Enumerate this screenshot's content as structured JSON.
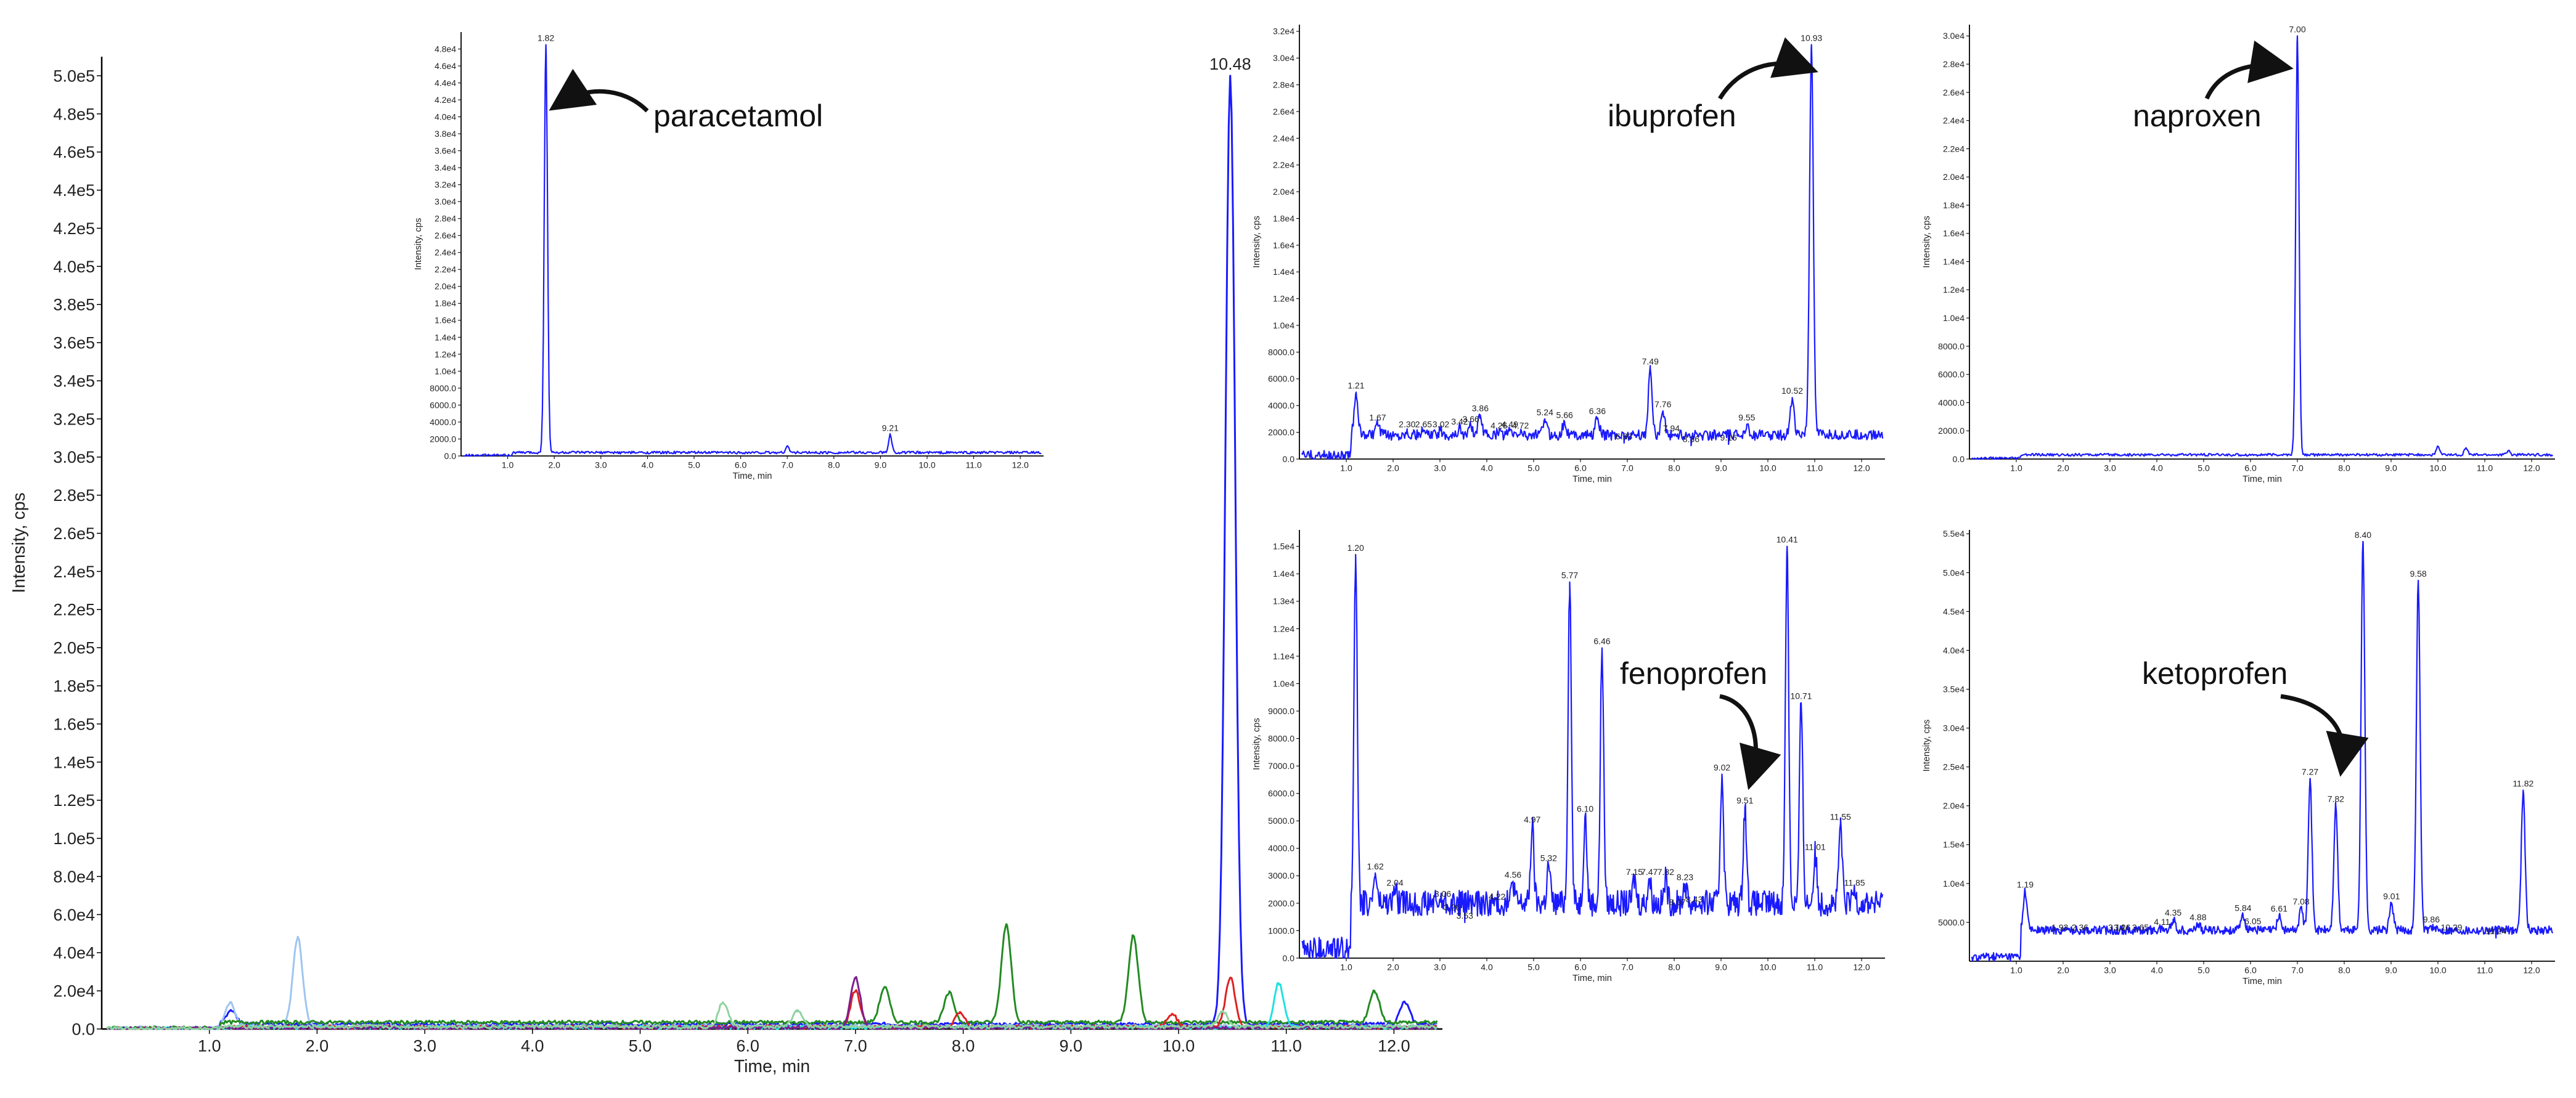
{
  "chart_data": [
    {
      "id": "main",
      "type": "line",
      "xlabel": "Time, min",
      "ylabel": "Intensity, cps",
      "xlim": [
        0,
        12.45
      ],
      "ylim": [
        0,
        510000
      ],
      "x_ticks": [
        "1.0",
        "2.0",
        "3.0",
        "4.0",
        "5.0",
        "6.0",
        "7.0",
        "8.0",
        "9.0",
        "10.0",
        "11.0",
        "12.0"
      ],
      "y_ticks": [
        "0.0",
        "2.0e4",
        "4.0e4",
        "6.0e4",
        "8.0e4",
        "1.0e5",
        "1.2e5",
        "1.4e5",
        "1.6e5",
        "1.8e5",
        "2.0e5",
        "2.2e5",
        "2.4e5",
        "2.6e5",
        "2.8e5",
        "3.0e5",
        "3.2e5",
        "3.4e5",
        "3.6e5",
        "3.8e5",
        "4.0e5",
        "4.2e5",
        "4.4e5",
        "4.6e5",
        "4.8e5",
        "5.0e5"
      ],
      "peak_labels": [
        {
          "x": 10.48,
          "y": 500000,
          "text": "10.48"
        }
      ],
      "series": [
        {
          "color": "#1a1aff",
          "peaks": [
            [
              1.2,
              10000
            ],
            [
              10.48,
              500000
            ],
            [
              12.1,
              14000
            ]
          ],
          "baseline": 2500
        },
        {
          "color": "#9ec5f0",
          "peaks": [
            [
              1.19,
              14000
            ],
            [
              1.82,
              48000
            ]
          ],
          "baseline": 1500
        },
        {
          "color": "#228b22",
          "peaks": [
            [
              7.27,
              22000
            ],
            [
              7.87,
              19000
            ],
            [
              8.4,
              55000
            ],
            [
              9.58,
              49000
            ],
            [
              11.82,
              20000
            ]
          ],
          "baseline": 3500
        },
        {
          "color": "#e02020",
          "peaks": [
            [
              7.0,
              20000
            ],
            [
              7.97,
              9000
            ],
            [
              9.94,
              8000
            ],
            [
              10.48,
              27000
            ]
          ],
          "baseline": 1000
        },
        {
          "color": "#20e0e0",
          "peaks": [
            [
              10.93,
              24000
            ]
          ],
          "baseline": 800
        },
        {
          "color": "#7b1f8f",
          "peaks": [
            [
              7.0,
              27000
            ]
          ],
          "baseline": 600
        },
        {
          "color": "#8fd39f",
          "peaks": [
            [
              5.77,
              14000
            ],
            [
              6.46,
              10000
            ],
            [
              10.41,
              9000
            ]
          ],
          "baseline": 1200
        }
      ]
    },
    {
      "id": "paracetamol",
      "type": "line",
      "annotation": "paracetamol",
      "xlabel": "Time, min",
      "ylabel": "Intensity, cps",
      "xlim": [
        0,
        12.5
      ],
      "ylim": [
        0,
        50000
      ],
      "x_ticks": [
        "1.0",
        "2.0",
        "3.0",
        "4.0",
        "5.0",
        "6.0",
        "7.0",
        "8.0",
        "9.0",
        "10.0",
        "11.0",
        "12.0"
      ],
      "y_ticks": [
        "0.0",
        "2000.0",
        "4000.0",
        "6000.0",
        "8000.0",
        "1.0e4",
        "1.2e4",
        "1.4e4",
        "1.6e4",
        "1.8e4",
        "2.0e4",
        "2.2e4",
        "2.4e4",
        "2.6e4",
        "2.8e4",
        "3.0e4",
        "3.2e4",
        "3.4e4",
        "3.6e4",
        "3.8e4",
        "4.0e4",
        "4.2e4",
        "4.4e4",
        "4.6e4",
        "4.8e4"
      ],
      "color": "#1a1aff",
      "baseline": 400,
      "peaks": [
        [
          1.82,
          48500
        ],
        [
          7.0,
          1200
        ],
        [
          9.21,
          2500
        ]
      ],
      "peak_labels": [
        {
          "x": 1.82,
          "y": 48500,
          "text": "1.82"
        },
        {
          "x": 9.21,
          "y": 2500,
          "text": "9.21"
        }
      ]
    },
    {
      "id": "ibuprofen",
      "type": "line",
      "annotation": "ibuprofen",
      "xlabel": "Time, min",
      "ylabel": "Intensity, cps",
      "xlim": [
        0,
        12.5
      ],
      "ylim": [
        0,
        32500
      ],
      "x_ticks": [
        "1.0",
        "2.0",
        "3.0",
        "4.0",
        "5.0",
        "6.0",
        "7.0",
        "8.0",
        "9.0",
        "10.0",
        "11.0",
        "12.0"
      ],
      "y_ticks": [
        "0.0",
        "2000.0",
        "4000.0",
        "6000.0",
        "8000.0",
        "1.0e4",
        "1.2e4",
        "1.4e4",
        "1.6e4",
        "1.8e4",
        "2.0e4",
        "2.2e4",
        "2.4e4",
        "2.6e4",
        "2.8e4",
        "3.0e4",
        "3.2e4"
      ],
      "color": "#1a1aff",
      "baseline": 1800,
      "peaks": [
        [
          1.21,
          5000
        ],
        [
          1.67,
          2600
        ],
        [
          2.3,
          2100
        ],
        [
          2.65,
          2100
        ],
        [
          3.02,
          2100
        ],
        [
          3.42,
          2300
        ],
        [
          3.66,
          2500
        ],
        [
          3.86,
          3300
        ],
        [
          4.26,
          2000
        ],
        [
          4.49,
          2100
        ],
        [
          4.72,
          2000
        ],
        [
          5.24,
          3000
        ],
        [
          5.66,
          2800
        ],
        [
          6.36,
          3100
        ],
        [
          6.93,
          1200
        ],
        [
          7.49,
          6800
        ],
        [
          7.76,
          3600
        ],
        [
          7.94,
          1800
        ],
        [
          8.36,
          1000
        ],
        [
          9.16,
          1100
        ],
        [
          9.55,
          2600
        ],
        [
          10.52,
          4600
        ],
        [
          10.93,
          31000
        ]
      ],
      "peak_labels": [
        {
          "x": 1.21,
          "y": 5000,
          "text": "1.21"
        },
        {
          "x": 1.67,
          "y": 2600,
          "text": "1.67"
        },
        {
          "x": 2.3,
          "y": 2100,
          "text": "2.30"
        },
        {
          "x": 2.65,
          "y": 2100,
          "text": "2.65"
        },
        {
          "x": 3.02,
          "y": 2100,
          "text": "3.02"
        },
        {
          "x": 3.42,
          "y": 2300,
          "text": "3.42"
        },
        {
          "x": 3.66,
          "y": 2500,
          "text": "3.66"
        },
        {
          "x": 3.86,
          "y": 3300,
          "text": "3.86"
        },
        {
          "x": 4.26,
          "y": 2000,
          "text": "4.26"
        },
        {
          "x": 4.49,
          "y": 2100,
          "text": "4.49"
        },
        {
          "x": 4.72,
          "y": 2000,
          "text": "4.72"
        },
        {
          "x": 5.24,
          "y": 3000,
          "text": "5.24"
        },
        {
          "x": 5.66,
          "y": 2800,
          "text": "5.66"
        },
        {
          "x": 6.36,
          "y": 3100,
          "text": "6.36"
        },
        {
          "x": 6.93,
          "y": 1200,
          "text": "6.93"
        },
        {
          "x": 7.49,
          "y": 6800,
          "text": "7.49"
        },
        {
          "x": 7.76,
          "y": 3600,
          "text": "7.76"
        },
        {
          "x": 7.94,
          "y": 1800,
          "text": "7.94"
        },
        {
          "x": 8.36,
          "y": 1000,
          "text": "8.36"
        },
        {
          "x": 9.16,
          "y": 1100,
          "text": "9.16"
        },
        {
          "x": 9.55,
          "y": 2600,
          "text": "9.55"
        },
        {
          "x": 10.52,
          "y": 4600,
          "text": "10.52"
        },
        {
          "x": 10.93,
          "y": 31000,
          "text": "10.93"
        }
      ]
    },
    {
      "id": "naproxen",
      "type": "line",
      "annotation": "naproxen",
      "xlabel": "Time, min",
      "ylabel": "Intensity, cps",
      "xlim": [
        0,
        12.5
      ],
      "ylim": [
        0,
        30800
      ],
      "x_ticks": [
        "1.0",
        "2.0",
        "3.0",
        "4.0",
        "5.0",
        "6.0",
        "7.0",
        "8.0",
        "9.0",
        "10.0",
        "11.0",
        "12.0"
      ],
      "y_ticks": [
        "0.0",
        "2000.0",
        "4000.0",
        "6000.0",
        "8000.0",
        "1.0e4",
        "1.2e4",
        "1.4e4",
        "1.6e4",
        "1.8e4",
        "2.0e4",
        "2.2e4",
        "2.4e4",
        "2.6e4",
        "2.8e4",
        "3.0e4"
      ],
      "color": "#1a1aff",
      "baseline": 300,
      "peaks": [
        [
          7.0,
          30000
        ],
        [
          10.0,
          900
        ],
        [
          10.6,
          800
        ],
        [
          11.5,
          600
        ]
      ],
      "peak_labels": [
        {
          "x": 7.0,
          "y": 30000,
          "text": "7.00"
        }
      ]
    },
    {
      "id": "fenoprofen",
      "type": "line",
      "annotation": "fenoprofen",
      "xlabel": "Time, min",
      "ylabel": "Intensity, cps",
      "xlim": [
        0,
        12.5
      ],
      "ylim": [
        0,
        15600
      ],
      "x_ticks": [
        "1.0",
        "2.0",
        "3.0",
        "4.0",
        "5.0",
        "6.0",
        "7.0",
        "8.0",
        "9.0",
        "10.0",
        "11.0",
        "12.0"
      ],
      "y_ticks": [
        "0.0",
        "1000.0",
        "2000.0",
        "3000.0",
        "4000.0",
        "5000.0",
        "6000.0",
        "7000.0",
        "8000.0",
        "9000.0",
        "1.0e4",
        "1.1e4",
        "1.2e4",
        "1.3e4",
        "1.4e4",
        "1.5e4"
      ],
      "color": "#1a1aff",
      "baseline": 2000,
      "peaks": [
        [
          1.2,
          14700
        ],
        [
          1.62,
          3100
        ],
        [
          2.04,
          2500
        ],
        [
          3.06,
          2100
        ],
        [
          3.26,
          1600
        ],
        [
          3.53,
          1300
        ],
        [
          4.22,
          2000
        ],
        [
          4.56,
          2800
        ],
        [
          4.97,
          4800
        ],
        [
          5.32,
          3400
        ],
        [
          5.77,
          13700
        ],
        [
          6.1,
          5200
        ],
        [
          6.46,
          11300
        ],
        [
          7.15,
          2900
        ],
        [
          7.47,
          2900
        ],
        [
          7.82,
          2900
        ],
        [
          8.07,
          1800
        ],
        [
          8.23,
          2700
        ],
        [
          8.43,
          1900
        ],
        [
          9.02,
          6700
        ],
        [
          9.51,
          5500
        ],
        [
          10.41,
          15000
        ],
        [
          10.71,
          9300
        ],
        [
          11.01,
          3800
        ],
        [
          11.55,
          4900
        ],
        [
          11.85,
          2500
        ]
      ],
      "peak_labels": [
        {
          "x": 1.2,
          "y": 14700,
          "text": "1.20"
        },
        {
          "x": 1.62,
          "y": 3100,
          "text": "1.62"
        },
        {
          "x": 2.04,
          "y": 2500,
          "text": "2.04"
        },
        {
          "x": 3.06,
          "y": 2100,
          "text": "3.06"
        },
        {
          "x": 3.26,
          "y": 1600,
          "text": "3.26"
        },
        {
          "x": 3.53,
          "y": 1300,
          "text": "3.53"
        },
        {
          "x": 4.22,
          "y": 2000,
          "text": "4.22"
        },
        {
          "x": 4.56,
          "y": 2800,
          "text": "4.56"
        },
        {
          "x": 4.97,
          "y": 4800,
          "text": "4.97"
        },
        {
          "x": 5.32,
          "y": 3400,
          "text": "5.32"
        },
        {
          "x": 5.77,
          "y": 13700,
          "text": "5.77"
        },
        {
          "x": 6.1,
          "y": 5200,
          "text": "6.10"
        },
        {
          "x": 6.46,
          "y": 11300,
          "text": "6.46"
        },
        {
          "x": 7.15,
          "y": 2900,
          "text": "7.15"
        },
        {
          "x": 7.47,
          "y": 2900,
          "text": "7.47"
        },
        {
          "x": 7.82,
          "y": 2900,
          "text": "7.82"
        },
        {
          "x": 8.07,
          "y": 1800,
          "text": "8.07"
        },
        {
          "x": 8.23,
          "y": 2700,
          "text": "8.23"
        },
        {
          "x": 8.43,
          "y": 1900,
          "text": "8.43"
        },
        {
          "x": 9.02,
          "y": 6700,
          "text": "9.02"
        },
        {
          "x": 9.51,
          "y": 5500,
          "text": "9.51"
        },
        {
          "x": 10.41,
          "y": 15000,
          "text": "10.41"
        },
        {
          "x": 10.71,
          "y": 9300,
          "text": "10.71"
        },
        {
          "x": 11.01,
          "y": 3800,
          "text": "11.01"
        },
        {
          "x": 11.55,
          "y": 4900,
          "text": "11.55"
        },
        {
          "x": 11.85,
          "y": 2500,
          "text": "11.85"
        }
      ]
    },
    {
      "id": "ketoprofen",
      "type": "line",
      "annotation": "ketoprofen",
      "xlabel": "Time, min",
      "ylabel": "Intensity, cps",
      "xlim": [
        0,
        12.5
      ],
      "ylim": [
        0,
        55500
      ],
      "x_ticks": [
        "1.0",
        "2.0",
        "3.0",
        "4.0",
        "5.0",
        "6.0",
        "7.0",
        "8.0",
        "9.0",
        "10.0",
        "11.0",
        "12.0"
      ],
      "y_ticks": [
        "5000.0",
        "1.0e4",
        "1.5e4",
        "2.0e4",
        "2.5e4",
        "3.0e4",
        "3.5e4",
        "4.0e4",
        "4.5e4",
        "5.0e4",
        "5.5e4"
      ],
      "color": "#1a1aff",
      "baseline": 4000,
      "peaks": [
        [
          1.19,
          9000
        ],
        [
          1.93,
          3500
        ],
        [
          2.36,
          3500
        ],
        [
          3.14,
          3500
        ],
        [
          3.26,
          3500
        ],
        [
          3.65,
          3500
        ],
        [
          4.11,
          4200
        ],
        [
          4.35,
          5400
        ],
        [
          4.88,
          4800
        ],
        [
          5.84,
          6000
        ],
        [
          6.05,
          4300
        ],
        [
          6.61,
          5900
        ],
        [
          7.08,
          6800
        ],
        [
          7.27,
          23500
        ],
        [
          7.82,
          20000
        ],
        [
          8.4,
          54000
        ],
        [
          9.01,
          7500
        ],
        [
          9.58,
          49000
        ],
        [
          9.86,
          4500
        ],
        [
          10.29,
          3500
        ],
        [
          11.24,
          3000
        ],
        [
          11.82,
          22000
        ]
      ],
      "peak_labels": [
        {
          "x": 1.19,
          "y": 9000,
          "text": "1.19"
        },
        {
          "x": 1.93,
          "y": 3500,
          "text": "1.93"
        },
        {
          "x": 2.36,
          "y": 3500,
          "text": "2.36"
        },
        {
          "x": 3.14,
          "y": 3500,
          "text": "3.14"
        },
        {
          "x": 3.26,
          "y": 3500,
          "text": "3.26"
        },
        {
          "x": 3.65,
          "y": 3500,
          "text": "3.65"
        },
        {
          "x": 4.11,
          "y": 4200,
          "text": "4.11"
        },
        {
          "x": 4.35,
          "y": 5400,
          "text": "4.35"
        },
        {
          "x": 4.88,
          "y": 4800,
          "text": "4.88"
        },
        {
          "x": 5.84,
          "y": 6000,
          "text": "5.84"
        },
        {
          "x": 6.05,
          "y": 4300,
          "text": "6.05"
        },
        {
          "x": 6.61,
          "y": 5900,
          "text": "6.61"
        },
        {
          "x": 7.08,
          "y": 6800,
          "text": "7.08"
        },
        {
          "x": 7.27,
          "y": 23500,
          "text": "7.27"
        },
        {
          "x": 7.82,
          "y": 20000,
          "text": "7.82"
        },
        {
          "x": 8.4,
          "y": 54000,
          "text": "8.40"
        },
        {
          "x": 9.01,
          "y": 7500,
          "text": "9.01"
        },
        {
          "x": 9.58,
          "y": 49000,
          "text": "9.58"
        },
        {
          "x": 9.86,
          "y": 4500,
          "text": "9.86"
        },
        {
          "x": 10.29,
          "y": 3500,
          "text": "10.29"
        },
        {
          "x": 11.24,
          "y": 3000,
          "text": "11.24"
        },
        {
          "x": 11.82,
          "y": 22000,
          "text": "11.82"
        }
      ]
    }
  ]
}
